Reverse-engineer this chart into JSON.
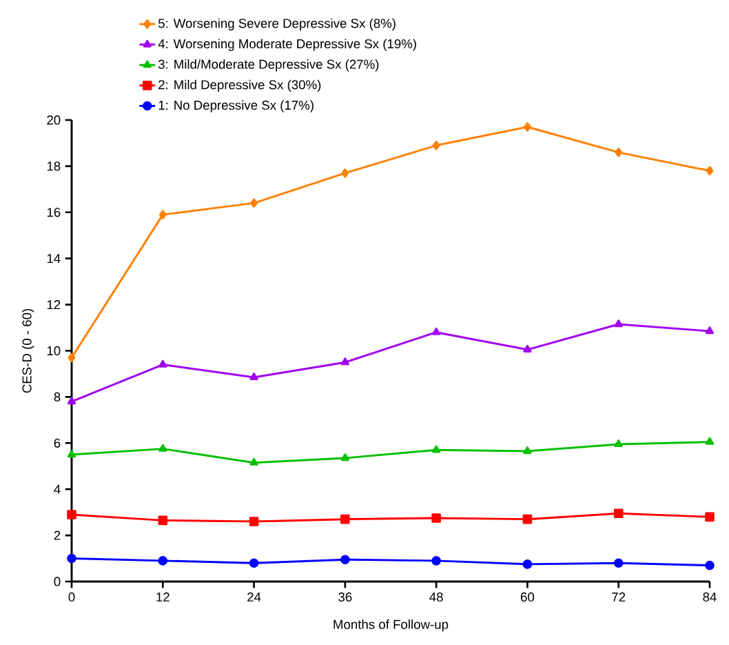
{
  "chart_data": {
    "type": "line",
    "xlabel": "Months of Follow-up",
    "ylabel": "CES-D (0 - 60)",
    "x": [
      0,
      12,
      24,
      36,
      48,
      60,
      72,
      84
    ],
    "xlim": [
      0,
      84
    ],
    "ylim": [
      0,
      20
    ],
    "xticks": [
      0,
      12,
      24,
      36,
      48,
      60,
      72,
      84
    ],
    "yticks": [
      0,
      2,
      4,
      6,
      8,
      10,
      12,
      14,
      16,
      18,
      20
    ],
    "grid": false,
    "legend": "top",
    "line_style": "solid",
    "series": [
      {
        "name": "5: Worsening Severe Depressive Sx (8%)",
        "color": "#ff8000",
        "marker": "diamond",
        "values": [
          9.7,
          15.9,
          16.4,
          17.7,
          18.9,
          19.7,
          18.6,
          17.8
        ]
      },
      {
        "name": "4: Worsening Moderate Depressive Sx (19%)",
        "color": "#a000f0",
        "marker": "triangle_down",
        "values": [
          7.8,
          9.4,
          8.85,
          9.5,
          10.8,
          10.05,
          11.15,
          10.85
        ]
      },
      {
        "name": "3: Mild/Moderate Depressive Sx (27%)",
        "color": "#00c000",
        "marker": "triangle",
        "values": [
          5.5,
          5.75,
          5.15,
          5.35,
          5.7,
          5.65,
          5.95,
          6.05
        ]
      },
      {
        "name": "2: Mild Depressive Sx (30%)",
        "color": "#ff0000",
        "marker": "square",
        "values": [
          2.9,
          2.65,
          2.6,
          2.7,
          2.75,
          2.7,
          2.95,
          2.8
        ]
      },
      {
        "name": "1: No Depressive Sx (17%)",
        "color": "#0000ff",
        "marker": "circle",
        "values": [
          1.0,
          0.9,
          0.8,
          0.95,
          0.9,
          0.75,
          0.8,
          0.7
        ]
      }
    ]
  }
}
